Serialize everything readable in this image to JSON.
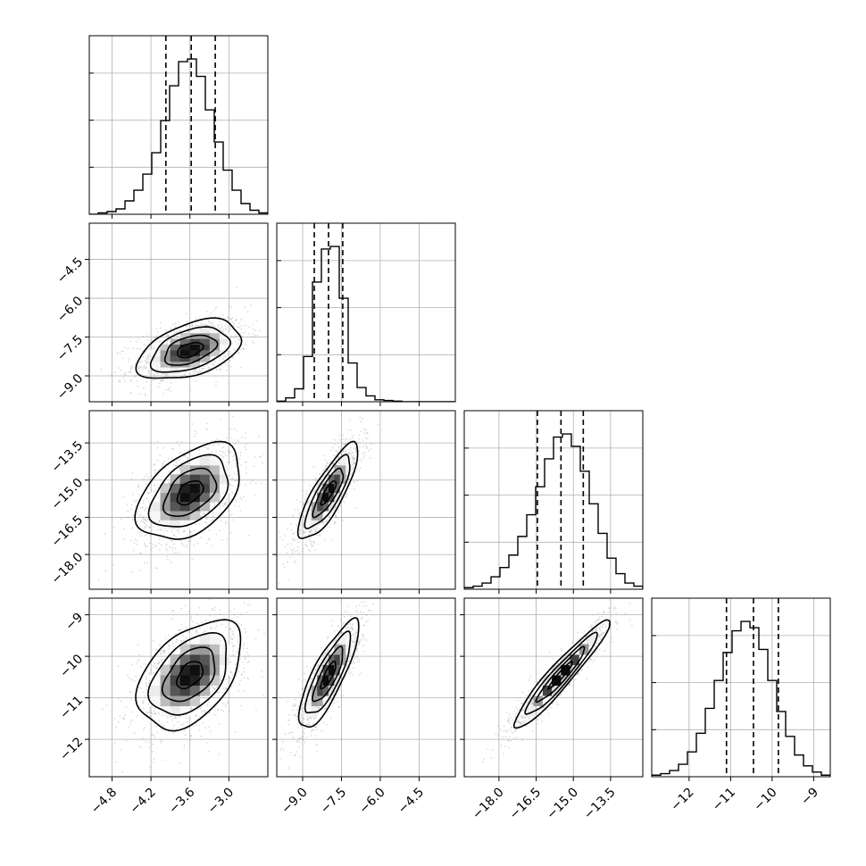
{
  "chart_data": {
    "type": "corner",
    "title": "",
    "parameters": [
      {
        "ticks": [
          -4.8,
          -4.2,
          -3.6,
          -3.0
        ],
        "tick_labels": [
          "−4.8",
          "−4.2",
          "−3.6",
          "−3.0"
        ],
        "range": [
          -5.15,
          -2.4
        ],
        "quantiles": [
          -3.97,
          -3.58,
          -3.21
        ],
        "mean": -3.6,
        "std": 0.38,
        "hist": [
          0,
          1,
          2,
          4,
          10,
          18,
          30,
          46,
          70,
          96,
          114,
          116,
          103,
          78,
          54,
          33,
          18,
          8,
          3,
          1
        ]
      },
      {
        "ticks": [
          -9.0,
          -7.5,
          -6.0,
          -4.5
        ],
        "tick_labels": [
          "−9.0",
          "−7.5",
          "−6.0",
          "−4.5"
        ],
        "range": [
          -10.0,
          -3.1
        ],
        "quantiles": [
          -8.55,
          -8.0,
          -7.45
        ],
        "mean": -8.0,
        "std": 0.55,
        "hist": [
          1,
          6,
          20,
          70,
          185,
          236,
          240,
          160,
          60,
          22,
          9,
          3,
          2,
          1,
          0,
          0,
          0,
          0,
          0,
          0
        ]
      },
      {
        "ticks": [
          -18.0,
          -16.5,
          -15.0,
          -13.5
        ],
        "tick_labels": [
          "−18.0",
          "−16.5",
          "−15.0",
          "−13.5"
        ],
        "range": [
          -19.4,
          -12.2
        ],
        "quantiles": [
          -16.45,
          -15.5,
          -14.6
        ],
        "mean": -15.5,
        "std": 0.92,
        "hist": [
          1,
          2,
          4,
          8,
          14,
          22,
          34,
          48,
          66,
          84,
          98,
          100,
          92,
          76,
          55,
          36,
          20,
          10,
          4,
          2
        ]
      },
      {
        "ticks": [
          -12,
          -11,
          -10,
          -9
        ],
        "tick_labels": [
          "−12",
          "−11",
          "−10",
          "−9"
        ],
        "range": [
          -12.9,
          -8.6
        ],
        "quantiles": [
          -11.1,
          -10.45,
          -9.85
        ],
        "mean": -10.45,
        "std": 0.62,
        "hist": [
          1,
          2,
          4,
          8,
          16,
          28,
          44,
          62,
          80,
          94,
          100,
          96,
          82,
          62,
          42,
          26,
          14,
          7,
          3,
          1
        ]
      }
    ],
    "correlations": {
      "1-0": 0.45,
      "2-0": 0.45,
      "2-1": 0.82,
      "3-0": 0.45,
      "3-1": 0.82,
      "3-2": 0.95
    },
    "hist_ylim_scale": 1.15,
    "contour_levels": [
      "0.5σ",
      "1σ",
      "1.5σ",
      "2σ"
    ],
    "grid": true,
    "axis_labels": []
  }
}
